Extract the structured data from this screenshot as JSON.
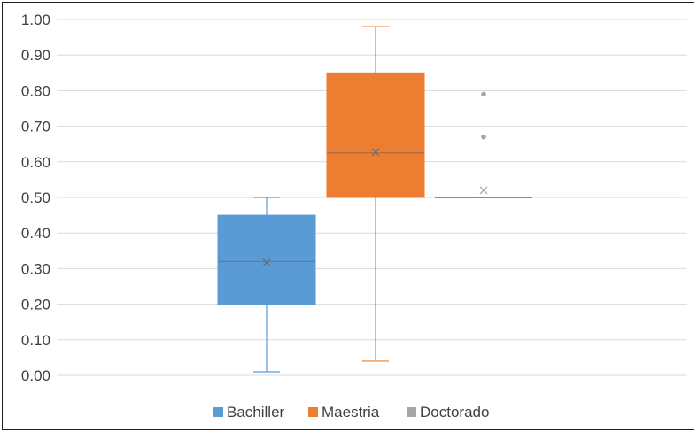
{
  "chart_data": {
    "type": "box",
    "title": "",
    "xlabel": "",
    "ylabel": "",
    "ylim": [
      0,
      1
    ],
    "ytick_step": 0.1,
    "ytick_labels": [
      "0.00",
      "0.10",
      "0.20",
      "0.30",
      "0.40",
      "0.50",
      "0.60",
      "0.70",
      "0.80",
      "0.90",
      "1.00"
    ],
    "grid": true,
    "legend_position": "bottom",
    "series": [
      {
        "name": "Bachiller",
        "color": "#5B9BD5",
        "whisker_low": 0.01,
        "q1": 0.2,
        "median": 0.32,
        "q3": 0.45,
        "whisker_high": 0.5,
        "mean": 0.317,
        "outliers": []
      },
      {
        "name": "Maestria",
        "color": "#ED7D31",
        "whisker_low": 0.04,
        "q1": 0.5,
        "median": 0.625,
        "q3": 0.85,
        "whisker_high": 0.98,
        "mean": 0.627,
        "outliers": []
      },
      {
        "name": "Doctorado",
        "color": "#A5A5A5",
        "whisker_low": 0.5,
        "q1": 0.5,
        "median": 0.5,
        "q3": 0.5,
        "whisker_high": 0.5,
        "mean": 0.52,
        "outliers": [
          0.67,
          0.79
        ]
      }
    ]
  }
}
